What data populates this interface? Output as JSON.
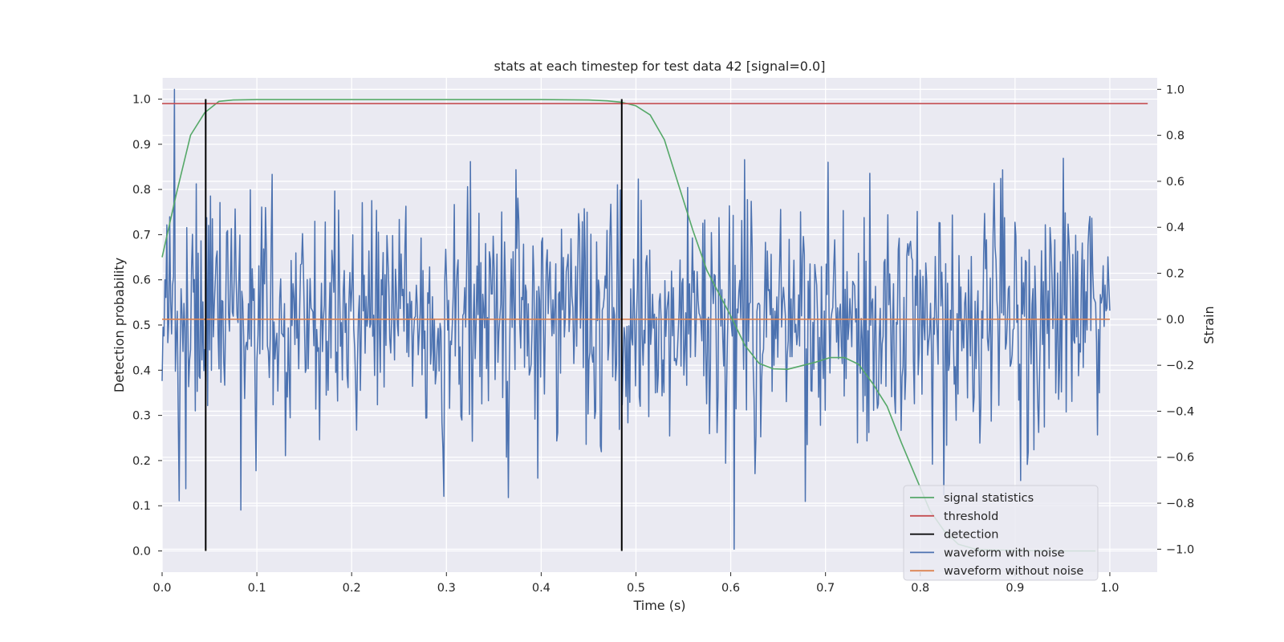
{
  "chart_data": {
    "type": "line",
    "title": "stats at each timestep for test data 42 [signal=0.0]",
    "xlabel": "Time (s)",
    "ylabel": "Detection probability",
    "y2label": "Strain",
    "xlim": [
      0.0,
      1.05
    ],
    "ylim": [
      -0.047,
      1.047
    ],
    "y2lim": [
      -1.1,
      1.05
    ],
    "xticks": [
      0.0,
      0.1,
      0.2,
      0.3,
      0.4,
      0.5,
      0.6,
      0.7,
      0.8,
      0.9,
      1.0
    ],
    "xtick_labels": [
      "0.0",
      "0.1",
      "0.2",
      "0.3",
      "0.4",
      "0.5",
      "0.6",
      "0.7",
      "0.8",
      "0.9",
      "1.0"
    ],
    "yticks": [
      0.0,
      0.1,
      0.2,
      0.3,
      0.4,
      0.5,
      0.6,
      0.7,
      0.8,
      0.9,
      1.0
    ],
    "ytick_labels": [
      "0.0",
      "0.1",
      "0.2",
      "0.3",
      "0.4",
      "0.5",
      "0.6",
      "0.7",
      "0.8",
      "0.9",
      "1.0"
    ],
    "y2ticks": [
      -1.0,
      -0.8,
      -0.6,
      -0.4,
      -0.2,
      0.0,
      0.2,
      0.4,
      0.6,
      0.8,
      1.0
    ],
    "y2tick_labels": [
      "−1.0",
      "−0.8",
      "−0.6",
      "−0.4",
      "−0.2",
      "0.0",
      "0.2",
      "0.4",
      "0.6",
      "0.8",
      "1.0"
    ],
    "grid": true,
    "legend_position": "lower-right",
    "colors": {
      "background": "#eaeaf2",
      "grid": "#ffffff",
      "signal_statistics": "#55a868",
      "threshold": "#c44e52",
      "detection": "#000000",
      "waveform_with_noise": "#4c72b0",
      "waveform_without_noise": "#dd8452"
    },
    "series": [
      {
        "name": "signal statistics",
        "axis": "left",
        "x": [
          0.0,
          0.015,
          0.03,
          0.045,
          0.06,
          0.075,
          0.1,
          0.2,
          0.3,
          0.4,
          0.45,
          0.47,
          0.485,
          0.5,
          0.515,
          0.53,
          0.545,
          0.56,
          0.575,
          0.59,
          0.6,
          0.615,
          0.63,
          0.645,
          0.66,
          0.675,
          0.69,
          0.705,
          0.72,
          0.735,
          0.75,
          0.765,
          0.78,
          0.795,
          0.81,
          0.825,
          0.84,
          0.86,
          0.9,
          0.95,
          0.985
        ],
        "y": [
          0.65,
          0.79,
          0.92,
          0.97,
          0.995,
          0.998,
          0.999,
          0.999,
          0.999,
          0.999,
          0.998,
          0.996,
          0.993,
          0.985,
          0.965,
          0.91,
          0.81,
          0.71,
          0.62,
          0.56,
          0.52,
          0.455,
          0.415,
          0.403,
          0.402,
          0.41,
          0.418,
          0.428,
          0.428,
          0.413,
          0.37,
          0.32,
          0.24,
          0.165,
          0.09,
          0.045,
          0.015,
          0.003,
          0.001,
          0.0,
          0.0
        ]
      },
      {
        "name": "threshold",
        "axis": "left",
        "x": [
          0.0,
          1.04
        ],
        "y": [
          0.99,
          0.99
        ]
      },
      {
        "name": "detection",
        "axis": "left",
        "type": "vlines",
        "x": [
          0.046,
          0.485
        ],
        "ymin": 0.0,
        "ymax": 1.0
      },
      {
        "name": "waveform with noise",
        "axis": "right",
        "x_range": [
          0.0,
          1.0
        ],
        "n_points": 1000,
        "distribution": {
          "mean": 0.0,
          "std": 0.26,
          "min": -1.0,
          "max": 1.0
        },
        "highlights": [
          {
            "x": 0.013,
            "y": 1.0
          },
          {
            "x": 0.083,
            "y": -0.83
          },
          {
            "x": 0.297,
            "y": -0.77
          },
          {
            "x": 0.604,
            "y": -1.0
          },
          {
            "x": 0.951,
            "y": 0.7
          }
        ]
      },
      {
        "name": "waveform without noise",
        "axis": "right",
        "x": [
          0.0,
          1.0
        ],
        "y": [
          0.0,
          0.0
        ]
      }
    ]
  }
}
